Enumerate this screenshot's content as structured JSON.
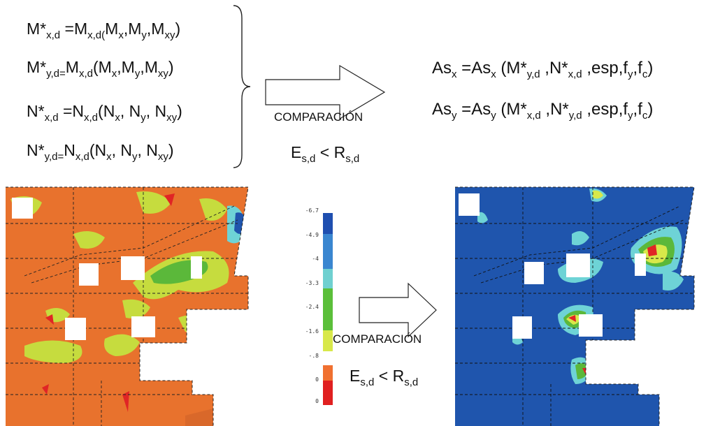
{
  "equations_left": [
    {
      "parts": [
        "M*",
        "x,d",
        " =M",
        "x,d(",
        "M",
        "x",
        ",M",
        "y",
        ",M",
        "xy",
        ")"
      ]
    },
    {
      "parts": [
        "M*",
        "y,d=",
        "M",
        "x,d",
        "(M",
        "x",
        ",M",
        "y",
        ",M",
        "xy",
        ")"
      ]
    },
    {
      "parts": [
        "N*",
        "x,d",
        " =N",
        "x,d",
        "(N",
        "x",
        ", N",
        "y",
        ", N",
        "xy",
        ")"
      ]
    },
    {
      "parts": [
        "N*",
        "y,d=",
        "N",
        "x,d",
        "(N",
        "x",
        ", N",
        "y",
        ", N",
        "xy",
        ")"
      ]
    }
  ],
  "equations_right": [
    {
      "parts": [
        "As",
        "x",
        " =As",
        "x",
        " (M*",
        "y,d",
        " ,N*",
        "x,d",
        " ,esp,f",
        "y",
        ",f",
        "c",
        ")"
      ]
    },
    {
      "parts": [
        "As",
        "y",
        " =As",
        "y",
        " (M*",
        "x,d",
        " ,N*",
        "y,d",
        " ,esp,f",
        "y",
        ",f",
        "c",
        ")"
      ]
    }
  ],
  "top_arrow": {
    "label": "COMPARACIÓN",
    "condition": {
      "main": "E",
      "sub1": "s,d",
      "mid": " < R",
      "sub2": "s,d"
    }
  },
  "bottom_arrow": {
    "label": "COMPARACIÓN",
    "condition": {
      "main": "E",
      "sub1": "s,d",
      "mid": " < R",
      "sub2": "s,d"
    }
  },
  "legend": {
    "values": [
      "-6.7",
      "-4.9",
      "-4",
      "-3.3",
      "-2.4",
      "-1.6",
      "-.8",
      "0",
      "0"
    ],
    "colors": [
      "#1f4fb0",
      "#3a86d0",
      "#6fd0d0",
      "#5bbf3a",
      "#5bbf3a",
      "#d8e84a",
      "#ffffff",
      "#f07030",
      "#e02020"
    ]
  },
  "map_colors": {
    "orange": "#e8722d",
    "yellow_green": "#c6dc3e",
    "green": "#5bb83a",
    "cyan": "#6ed3d6",
    "blue": "#1f55ad",
    "red": "#e02525"
  }
}
